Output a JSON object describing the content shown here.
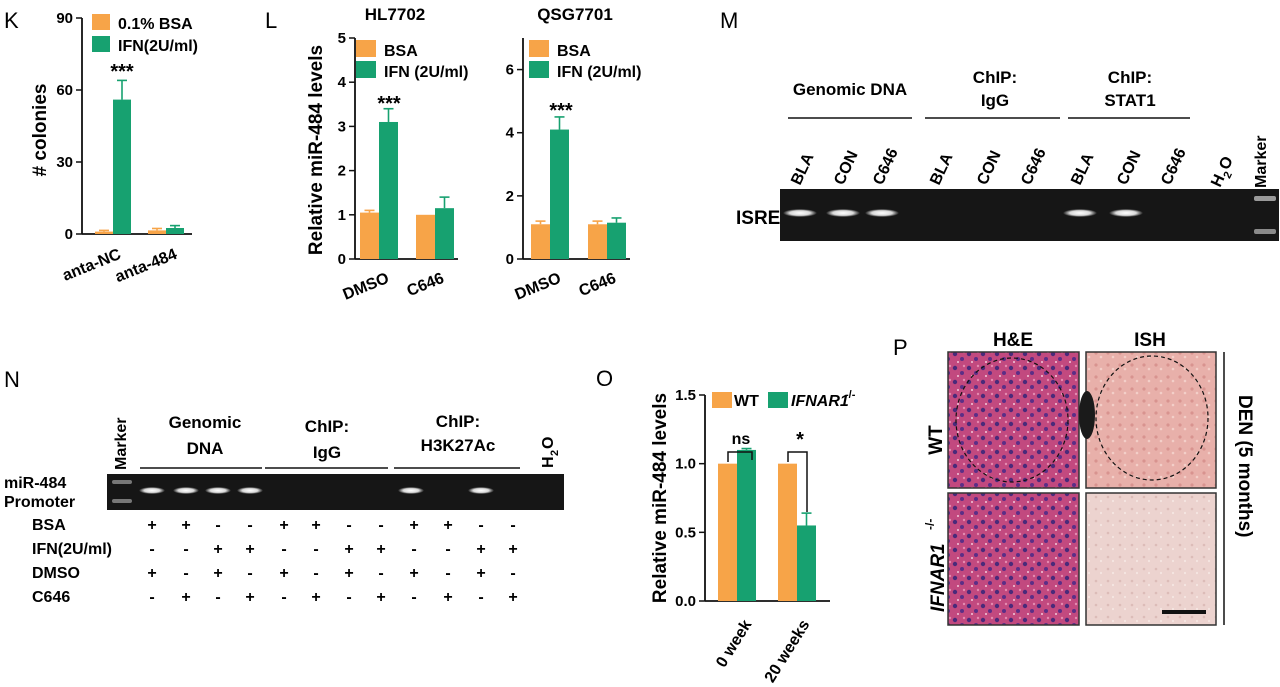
{
  "colors": {
    "bsa": "#F7A448",
    "ifn": "#17A170",
    "gel_bg": "#161616",
    "band": "#e6e6e6"
  },
  "panels": {
    "K": {
      "letter": "K",
      "ylabel": "# colonies",
      "yticks": [
        "0",
        "30",
        "60",
        "90"
      ],
      "legend": [
        "0.1% BSA",
        "IFN(2U/ml)"
      ],
      "categories": [
        "anta-NC",
        "anta-484"
      ],
      "star": "***"
    },
    "L": {
      "letter": "L",
      "ylabel": "Relative miR-484 levels",
      "left_title": "HL7702",
      "right_title": "QSG7701",
      "left_yticks": [
        "0",
        "1",
        "2",
        "3",
        "4",
        "5"
      ],
      "right_yticks": [
        "0",
        "2",
        "4",
        "6"
      ],
      "legend": [
        "BSA",
        "IFN (2U/ml)"
      ],
      "categories": [
        "DMSO",
        "C646"
      ],
      "star": "***"
    },
    "M": {
      "letter": "M",
      "groups": [
        "Genomic DNA",
        "ChIP:",
        "IgG",
        "ChIP:",
        "STAT1"
      ],
      "lanes": [
        "BLA",
        "CON",
        "C646",
        "BLA",
        "CON",
        "C646",
        "BLA",
        "CON",
        "C646",
        "H",
        "2",
        "O",
        "Marker"
      ],
      "row_label": "ISRE"
    },
    "N": {
      "letter": "N",
      "marker": "Marker",
      "groups": [
        "Genomic",
        "DNA",
        "ChIP:",
        "IgG",
        "ChIP:",
        "H3K27Ac"
      ],
      "h2o": [
        "H",
        "2",
        "O"
      ],
      "row_label_1": "miR-484",
      "row_label_2": "Promoter",
      "conditions": [
        {
          "label": "BSA",
          "signs": [
            "+",
            "+",
            "-",
            "-",
            "+",
            "+",
            "-",
            "-",
            "+",
            "+",
            "-",
            "-"
          ]
        },
        {
          "label": "IFN(2U/ml)",
          "signs": [
            "-",
            "-",
            "+",
            "+",
            "-",
            "-",
            "+",
            "+",
            "-",
            "-",
            "+",
            "+"
          ]
        },
        {
          "label": "DMSO",
          "signs": [
            "+",
            "-",
            "+",
            "-",
            "+",
            "-",
            "+",
            "-",
            "+",
            "-",
            "+",
            "-"
          ]
        },
        {
          "label": "C646",
          "signs": [
            "-",
            "+",
            "-",
            "+",
            "-",
            "+",
            "-",
            "+",
            "-",
            "+",
            "-",
            "+"
          ]
        }
      ]
    },
    "O": {
      "letter": "O",
      "ylabel": "Relative miR-484 levels",
      "yticks": [
        "0.0",
        "0.5",
        "1.0",
        "1.5"
      ],
      "legend": [
        "WT",
        "IFNAR1",
        "-/-"
      ],
      "categories": [
        "0 week",
        "20 weeks"
      ],
      "sig": [
        "ns",
        "*"
      ]
    },
    "P": {
      "letter": "P",
      "col1": "H&E",
      "col2": "ISH",
      "row1": "WT",
      "row2": "IFNAR1",
      "row2_sup": "-/-",
      "side": "DEN (5 months)"
    }
  },
  "chart_data": [
    {
      "panel": "K",
      "type": "bar",
      "categories": [
        "anta-NC",
        "anta-484"
      ],
      "ylim": [
        0,
        90
      ],
      "series": [
        {
          "name": "0.1% BSA",
          "values": [
            1,
            1.5
          ],
          "errors": [
            0.5,
            0.8
          ]
        },
        {
          "name": "IFN(2U/ml)",
          "values": [
            56,
            2.5
          ],
          "errors": [
            8,
            1
          ]
        }
      ]
    },
    {
      "panel": "L-HL7702",
      "type": "bar",
      "title": "HL7702",
      "categories": [
        "DMSO",
        "C646"
      ],
      "ylim": [
        0,
        5
      ],
      "series": [
        {
          "name": "BSA",
          "values": [
            1.05,
            1.0
          ],
          "errors": [
            0.05,
            0
          ]
        },
        {
          "name": "IFN (2U/ml)",
          "values": [
            3.1,
            1.15
          ],
          "errors": [
            0.3,
            0.25
          ]
        }
      ]
    },
    {
      "panel": "L-QSG7701",
      "type": "bar",
      "title": "QSG7701",
      "categories": [
        "DMSO",
        "C646"
      ],
      "ylim": [
        0,
        7
      ],
      "series": [
        {
          "name": "BSA",
          "values": [
            1.1,
            1.1
          ],
          "errors": [
            0.1,
            0.1
          ]
        },
        {
          "name": "IFN (2U/ml)",
          "values": [
            4.1,
            1.15
          ],
          "errors": [
            0.4,
            0.15
          ]
        }
      ]
    },
    {
      "panel": "O",
      "type": "bar",
      "categories": [
        "0 week",
        "20 weeks"
      ],
      "ylim": [
        0,
        1.5
      ],
      "series": [
        {
          "name": "WT",
          "values": [
            1.0,
            1.0
          ],
          "errors": [
            0,
            0
          ]
        },
        {
          "name": "IFNAR1-/-",
          "values": [
            1.1,
            0.55
          ],
          "errors": [
            0.01,
            0.09
          ]
        }
      ]
    }
  ]
}
